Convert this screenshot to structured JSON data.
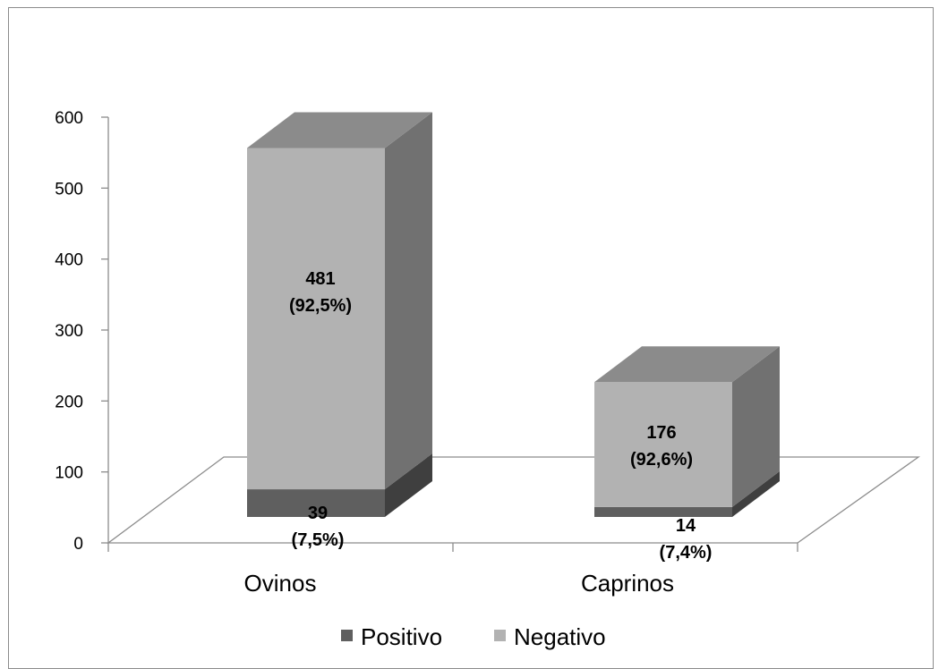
{
  "chart_data": {
    "type": "bar",
    "stacked": true,
    "three_d": true,
    "categories": [
      "Ovinos",
      "Caprinos"
    ],
    "series": [
      {
        "name": "Positivo",
        "values": [
          39,
          14
        ],
        "labels": [
          "39",
          "14"
        ],
        "pct_labels": [
          "(7,5%)",
          "(7,4%)"
        ],
        "color": "#5f5f5f",
        "side_color": "#3f3f3f",
        "top_color": "#4a4a4a"
      },
      {
        "name": "Negativo",
        "values": [
          481,
          176
        ],
        "labels": [
          "481",
          "176"
        ],
        "pct_labels": [
          "(92,5%)",
          "(92,6%)"
        ],
        "color": "#b2b2b2",
        "side_color": "#717171",
        "top_color": "#8b8b8b"
      }
    ],
    "yticks": [
      "0",
      "100",
      "200",
      "300",
      "400",
      "500",
      "600"
    ],
    "ylim": [
      0,
      600
    ],
    "grid": false,
    "legend_position": "bottom"
  }
}
